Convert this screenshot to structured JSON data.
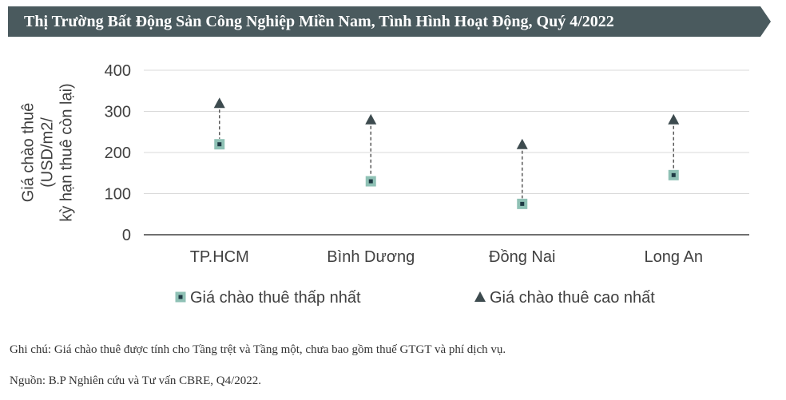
{
  "header": {
    "title": "Thị Trường Bất Động Sản Công Nghiệp Miền Nam, Tình Hình Hoạt Động, Quý 4/2022"
  },
  "chart_data": {
    "type": "scatter",
    "categories": [
      "TP.HCM",
      "Bình Dương",
      "Đồng Nai",
      "Long An"
    ],
    "series": [
      {
        "name": "Giá chào thuê thấp nhất",
        "marker": "square",
        "values": [
          220,
          130,
          75,
          145
        ]
      },
      {
        "name": "Giá chào thuê cao nhất",
        "marker": "triangle",
        "values": [
          320,
          280,
          220,
          280
        ]
      }
    ],
    "ylabel_lines": [
      "Giá chào thuê",
      "(USD/m2/",
      "kỳ hạn thuê còn lại)"
    ],
    "ylim": [
      0,
      400
    ],
    "yticks": [
      0,
      100,
      200,
      300,
      400
    ],
    "grid": true,
    "legend_position": "bottom",
    "colors": {
      "banner": "#4a5a5e",
      "grid": "#d9d9d9",
      "axis": "#404040",
      "square_fill": "#8fc1b5",
      "square_center": "#1f3a44",
      "triangle": "#3d4b4f",
      "connector": "#595959",
      "text": "#404040"
    }
  },
  "notes": {
    "note": "Ghi chú: Giá chào thuê được tính cho Tầng trệt và Tầng một, chưa bao gồm thuế GTGT và phí dịch vụ.",
    "source": "Nguồn: B.P Nghiên cứu và Tư vấn CBRE, Q4/2022."
  }
}
